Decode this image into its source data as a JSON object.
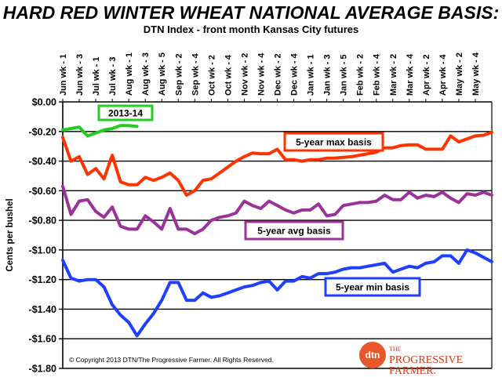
{
  "header": {
    "title": "HARD RED WINTER WHEAT NATIONAL AVERAGE BASIS:",
    "subtitle": "DTN Index - front month Kansas City futures"
  },
  "copyright": "© Copyright 2013 DTN/The Progressive Farmer. All Rights Reserved.",
  "logo": {
    "mark": "dtn",
    "prefix": "THE",
    "line1": "PROGRESSIVE",
    "line2": "FARMER."
  },
  "chart_data": {
    "type": "line",
    "title": "HARD RED WINTER WHEAT NATIONAL AVERAGE BASIS:",
    "subtitle": "DTN Index - front month Kansas City futures",
    "xlabel": "",
    "ylabel": "Cents per bushel",
    "ylim": [
      -1.8,
      0.0
    ],
    "ytick_step": 0.2,
    "yticks": [
      "$0.00",
      "-$0.20",
      "-$0.40",
      "-$0.60",
      "-$0.80",
      "-$1.00",
      "-$1.20",
      "-$1.40",
      "-$1.60",
      "-$1.80"
    ],
    "grid": "horizontal",
    "xtick_labels": [
      "Jun wk - 1",
      "Jun wk - 3",
      "Jul wk - 1",
      "Jul wk - 3",
      "Aug wk - 1",
      "Aug wk - 3",
      "Aug wk - 5",
      "Sep wk - 2",
      "Sep wk - 4",
      "Oct wk - 2",
      "Oct wk - 4",
      "Nov wk - 2",
      "Nov wk - 4",
      "Dec wk - 2",
      "Dec wk - 4",
      "Jan wk - 1",
      "Jan wk - 3",
      "Jan wk - 5",
      "Feb wk - 2",
      "Feb wk - 4",
      "Mar wk - 2",
      "Mar wk - 4",
      "Apr wk - 2",
      "Apr wk - 4",
      "May wk - 2",
      "May wk - 4"
    ],
    "x_points": 53,
    "series": [
      {
        "name": "2013-14",
        "color": "#22cc22",
        "values": [
          -0.19,
          -0.18,
          -0.17,
          -0.23,
          -0.21,
          -0.19,
          -0.18,
          -0.16,
          -0.16,
          -0.165
        ]
      },
      {
        "name": "5-year max basis",
        "color": "#ff3300",
        "values": [
          -0.24,
          -0.4,
          -0.37,
          -0.49,
          -0.45,
          -0.52,
          -0.36,
          -0.54,
          -0.56,
          -0.56,
          -0.51,
          -0.53,
          -0.51,
          -0.48,
          -0.53,
          -0.63,
          -0.6,
          -0.53,
          -0.52,
          -0.48,
          -0.44,
          -0.4,
          -0.37,
          -0.345,
          -0.35,
          -0.35,
          -0.32,
          -0.39,
          -0.39,
          -0.4,
          -0.39,
          -0.39,
          -0.38,
          -0.38,
          -0.375,
          -0.37,
          -0.36,
          -0.35,
          -0.34,
          -0.31,
          -0.31,
          -0.295,
          -0.29,
          -0.29,
          -0.32,
          -0.32,
          -0.32,
          -0.23,
          -0.27,
          -0.25,
          -0.23,
          -0.225,
          -0.205
        ]
      },
      {
        "name": "5-year avg basis",
        "color": "#993399",
        "values": [
          -0.57,
          -0.76,
          -0.67,
          -0.66,
          -0.74,
          -0.78,
          -0.71,
          -0.84,
          -0.86,
          -0.86,
          -0.77,
          -0.81,
          -0.86,
          -0.72,
          -0.86,
          -0.86,
          -0.89,
          -0.86,
          -0.8,
          -0.78,
          -0.77,
          -0.75,
          -0.67,
          -0.7,
          -0.72,
          -0.67,
          -0.7,
          -0.73,
          -0.75,
          -0.73,
          -0.73,
          -0.69,
          -0.77,
          -0.76,
          -0.7,
          -0.69,
          -0.68,
          -0.68,
          -0.67,
          -0.63,
          -0.66,
          -0.66,
          -0.61,
          -0.65,
          -0.63,
          -0.64,
          -0.61,
          -0.65,
          -0.68,
          -0.62,
          -0.63,
          -0.61,
          -0.63
        ]
      },
      {
        "name": "5-year min basis",
        "color": "#1f3fff",
        "values": [
          -1.07,
          -1.19,
          -1.21,
          -1.2,
          -1.2,
          -1.25,
          -1.37,
          -1.44,
          -1.49,
          -1.58,
          -1.5,
          -1.43,
          -1.34,
          -1.22,
          -1.22,
          -1.34,
          -1.34,
          -1.29,
          -1.32,
          -1.31,
          -1.29,
          -1.27,
          -1.25,
          -1.24,
          -1.22,
          -1.21,
          -1.27,
          -1.21,
          -1.21,
          -1.18,
          -1.19,
          -1.16,
          -1.16,
          -1.15,
          -1.13,
          -1.12,
          -1.12,
          -1.11,
          -1.1,
          -1.09,
          -1.15,
          -1.13,
          -1.11,
          -1.12,
          -1.09,
          -1.08,
          -1.04,
          -1.04,
          -1.09,
          -1.0,
          -1.02,
          -1.05,
          -1.08
        ]
      }
    ],
    "annotations": [
      {
        "text": "2013-14",
        "series": "2013-14",
        "color": "#22cc22"
      },
      {
        "text": "5-year max basis",
        "series": "5-year max basis",
        "color": "#ff3300"
      },
      {
        "text": "5-year avg basis",
        "series": "5-year avg basis",
        "color": "#993399"
      },
      {
        "text": "5-year min basis",
        "series": "5-year min basis",
        "color": "#1f3fff"
      }
    ]
  }
}
